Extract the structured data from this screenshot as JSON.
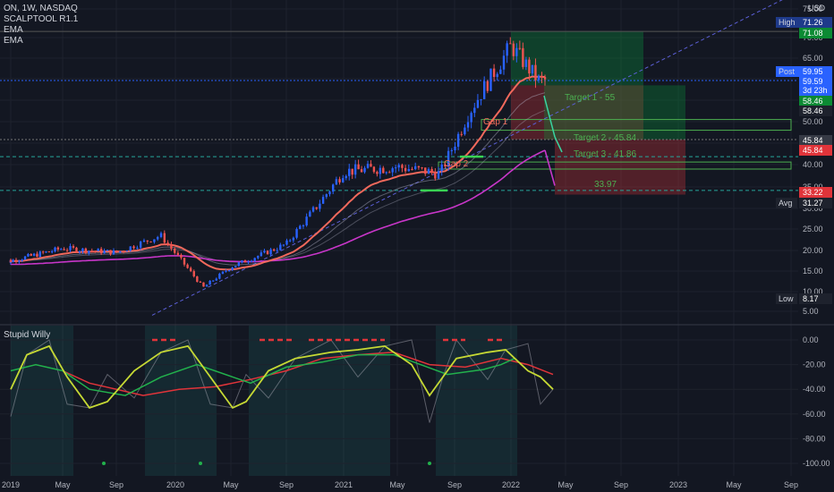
{
  "header": {
    "symbol_line": "ON, 1W, NASDAQ",
    "indicator1": "SCALPTOOL R1.1",
    "indicator2": "EMA",
    "indicator3": "EMA",
    "currency": "USD"
  },
  "oscillator": {
    "title": "Stupid Willy"
  },
  "colors": {
    "background": "#131722",
    "up": "#2962ff",
    "down": "#ef5350",
    "ema_fast": "#f2695c",
    "ema_slow": "#c836c9",
    "osc_fast": "#c6d934",
    "osc_green": "#22b14c",
    "osc_red": "#e0343a",
    "target_green": "#4caf50"
  },
  "chart_data": [
    {
      "type": "candlestick",
      "title": "ON, 1W, NASDAQ",
      "ylim": [
        5,
        75
      ],
      "y_ticks": [
        "75.00",
        "70.00",
        "65.00",
        "60.00",
        "55.00",
        "50.00",
        "45.00",
        "40.00",
        "35.00",
        "30.00",
        "25.00",
        "20.00",
        "15.00",
        "10.00",
        "5.00"
      ],
      "x_ticks": [
        "2019",
        "May",
        "Sep",
        "2020",
        "May",
        "Sep",
        "2021",
        "May",
        "Sep",
        "2022",
        "May",
        "Sep",
        "2023",
        "May",
        "Sep"
      ],
      "price_labels": [
        {
          "tag": "High",
          "value": "71.26",
          "color": "#1e3a8a"
        },
        {
          "tag": "",
          "value": "71.08",
          "color": "#0c8a33"
        },
        {
          "tag": "Post",
          "value": "59.95",
          "color": "#2962ff"
        },
        {
          "tag": "",
          "value": "59.59",
          "color": "#2962ff"
        },
        {
          "tag": "",
          "value": "3d 23h",
          "color": "#2962ff"
        },
        {
          "tag": "",
          "value": "58.46",
          "color": "#0c8a33"
        },
        {
          "tag": "",
          "value": "58.46",
          "color": "#1e222d"
        },
        {
          "tag": "",
          "value": "45.84",
          "color": "#363a45"
        },
        {
          "tag": "",
          "value": "45.84",
          "color": "#e0343a"
        },
        {
          "tag": "",
          "value": "33.22",
          "color": "#e0343a"
        },
        {
          "tag": "Avg",
          "value": "31.27",
          "color": "#1e222d"
        },
        {
          "tag": "Low",
          "value": "8.17",
          "color": "#1e222d"
        }
      ],
      "annotations": [
        "Target 1 - 55",
        "Target 2 - 45.84",
        "Target 3 - 41.86",
        "33.97",
        "Gap 1",
        "Gap 2"
      ],
      "close_series_approx": [
        {
          "date": "2019-01",
          "close": 17.5
        },
        {
          "date": "2019-05",
          "close": 20.5
        },
        {
          "date": "2019-09",
          "close": 19.5
        },
        {
          "date": "2019-12",
          "close": 23.5
        },
        {
          "date": "2020-03",
          "close": 11.0
        },
        {
          "date": "2020-05",
          "close": 16.0
        },
        {
          "date": "2020-09",
          "close": 21.5
        },
        {
          "date": "2021-01",
          "close": 38.5
        },
        {
          "date": "2021-05",
          "close": 39.5
        },
        {
          "date": "2021-08",
          "close": 38.0
        },
        {
          "date": "2021-10",
          "close": 52.0
        },
        {
          "date": "2022-01",
          "close": 68.0
        },
        {
          "date": "2022-03",
          "close": 59.59
        }
      ]
    },
    {
      "type": "line",
      "title": "Stupid Willy",
      "ylim": [
        -100,
        0
      ],
      "y_ticks": [
        "0.00",
        "-20.00",
        "-40.00",
        "-60.00",
        "-80.00",
        "-100.00"
      ]
    }
  ]
}
